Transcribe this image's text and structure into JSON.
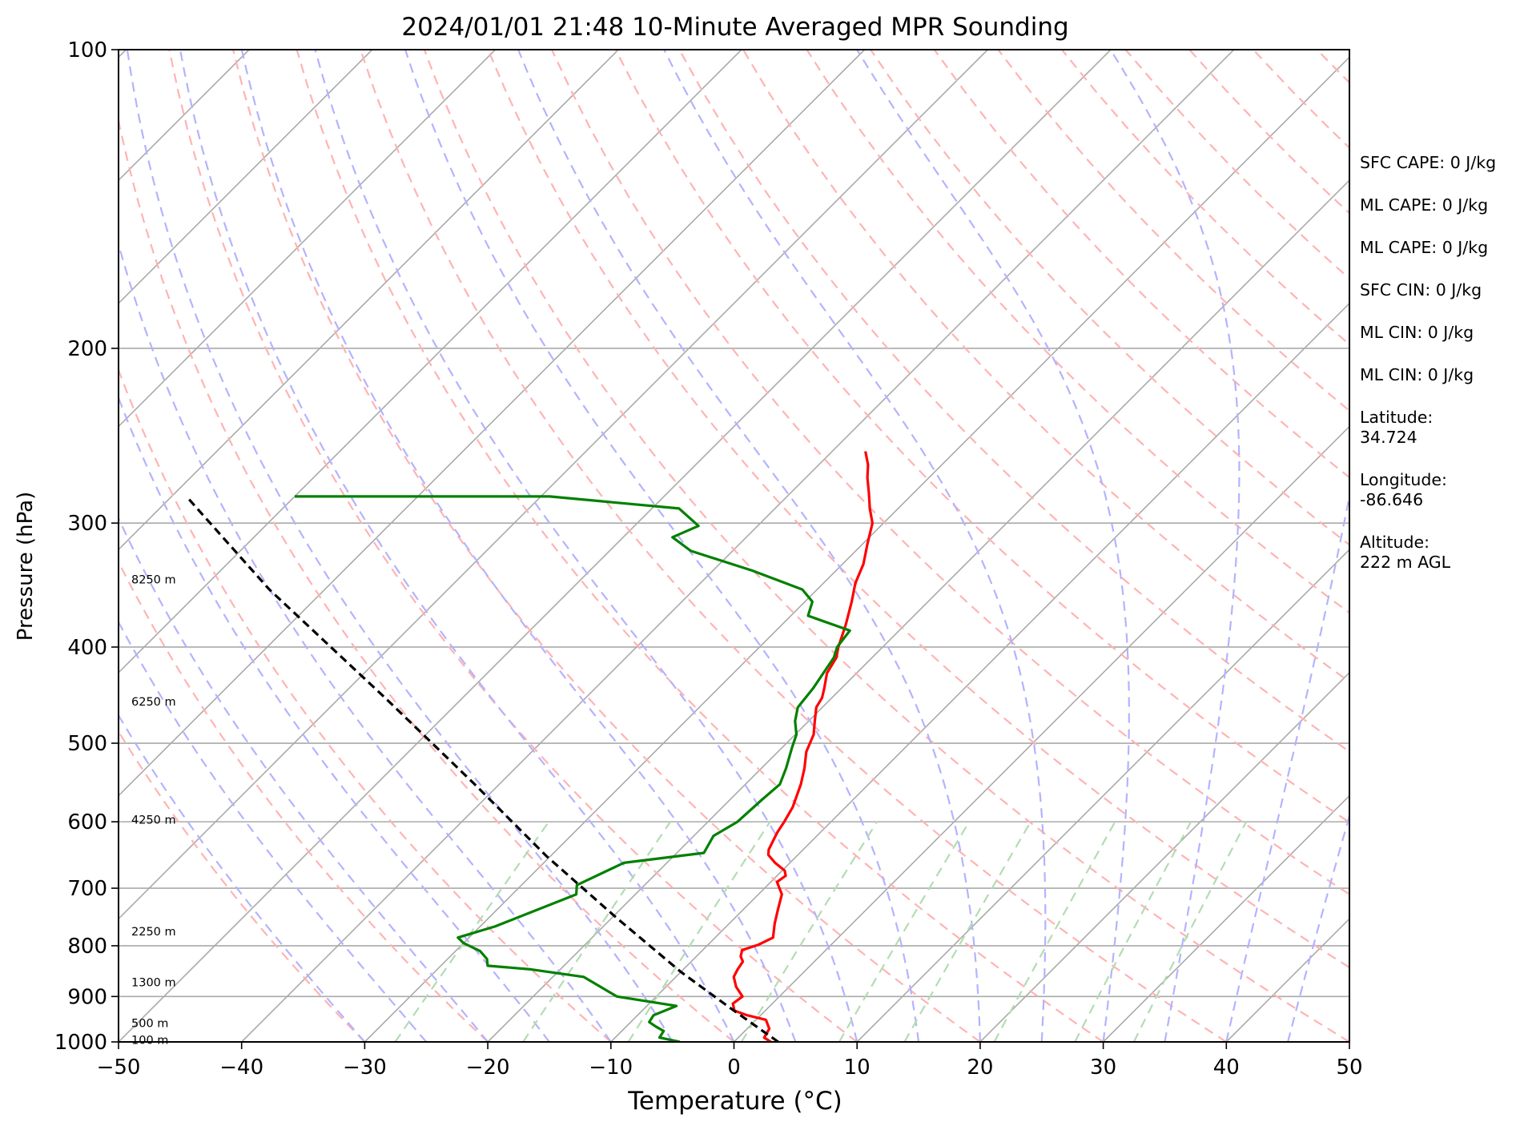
{
  "chart_data": {
    "type": "line",
    "title": "2024/01/01 21:48 10-Minute Averaged MPR Sounding",
    "xlabel": "Temperature (°C)",
    "ylabel": "Pressure (hPa)",
    "xlim": [
      -50,
      50
    ],
    "ylim": [
      1000,
      100
    ],
    "y_scale": "log",
    "skew": "skew-T",
    "grid": true,
    "x_ticks": [
      "−50",
      "−40",
      "−30",
      "−20",
      "−10",
      "0",
      "10",
      "20",
      "30",
      "40",
      "50"
    ],
    "x_tick_values": [
      -50,
      -40,
      -30,
      -20,
      -10,
      0,
      10,
      20,
      30,
      40,
      50
    ],
    "y_ticks": [
      "1000",
      "900",
      "800",
      "700",
      "600",
      "500",
      "400",
      "300",
      "200",
      "100"
    ],
    "y_tick_values": [
      1000,
      900,
      800,
      700,
      600,
      500,
      400,
      300,
      200,
      100
    ],
    "colors": {
      "temperature": "#ff0000",
      "dewpoint": "#008000",
      "parcel": "#000000",
      "isotherm": "#aaaaaa",
      "dry_adiabat": "#ffb3b3",
      "moist_adiabat": "#b3b3ff",
      "mixing_ratio": "#b3dcb3"
    },
    "series": [
      {
        "key": "temperature",
        "color": "#ff0000",
        "points": [
          [
            1000,
            3.0
          ],
          [
            990,
            2.1
          ],
          [
            970,
            1.8
          ],
          [
            950,
            0.8
          ],
          [
            940,
            -1.1
          ],
          [
            930,
            -2.5
          ],
          [
            915,
            -3.2
          ],
          [
            900,
            -3.0
          ],
          [
            880,
            -4.3
          ],
          [
            860,
            -5.3
          ],
          [
            845,
            -5.6
          ],
          [
            830,
            -5.8
          ],
          [
            820,
            -6.4
          ],
          [
            808,
            -6.8
          ],
          [
            798,
            -5.9
          ],
          [
            785,
            -5.3
          ],
          [
            760,
            -6.3
          ],
          [
            735,
            -7.2
          ],
          [
            710,
            -8.1
          ],
          [
            690,
            -9.5
          ],
          [
            680,
            -9.3
          ],
          [
            672,
            -9.8
          ],
          [
            660,
            -11.2
          ],
          [
            648,
            -12.4
          ],
          [
            640,
            -12.8
          ],
          [
            615,
            -13.5
          ],
          [
            600,
            -13.8
          ],
          [
            580,
            -14.3
          ],
          [
            550,
            -15.5
          ],
          [
            530,
            -16.5
          ],
          [
            510,
            -17.7
          ],
          [
            490,
            -18.5
          ],
          [
            475,
            -19.5
          ],
          [
            460,
            -20.5
          ],
          [
            450,
            -20.8
          ],
          [
            440,
            -21.4
          ],
          [
            425,
            -22.4
          ],
          [
            410,
            -22.9
          ],
          [
            400,
            -23.6
          ],
          [
            380,
            -24.8
          ],
          [
            360,
            -26.2
          ],
          [
            345,
            -27.4
          ],
          [
            330,
            -28.3
          ],
          [
            315,
            -29.6
          ],
          [
            300,
            -30.9
          ],
          [
            290,
            -32.3
          ],
          [
            280,
            -33.6
          ],
          [
            270,
            -35.0
          ],
          [
            262,
            -36.0
          ],
          [
            254,
            -37.3
          ]
        ]
      },
      {
        "key": "dewpoint",
        "color": "#008000",
        "points": [
          [
            1000,
            -4.4
          ],
          [
            990,
            -6.4
          ],
          [
            975,
            -6.6
          ],
          [
            965,
            -7.6
          ],
          [
            955,
            -8.5
          ],
          [
            940,
            -8.7
          ],
          [
            920,
            -7.6
          ],
          [
            900,
            -13.2
          ],
          [
            860,
            -17.5
          ],
          [
            845,
            -22.4
          ],
          [
            838,
            -26.2
          ],
          [
            825,
            -26.8
          ],
          [
            810,
            -28.0
          ],
          [
            795,
            -30.0
          ],
          [
            785,
            -30.9
          ],
          [
            765,
            -28.8
          ],
          [
            710,
            -24.8
          ],
          [
            695,
            -25.5
          ],
          [
            660,
            -23.5
          ],
          [
            645,
            -17.8
          ],
          [
            620,
            -18.4
          ],
          [
            600,
            -17.6
          ],
          [
            570,
            -17.4
          ],
          [
            550,
            -17.2
          ],
          [
            530,
            -18.0
          ],
          [
            505,
            -19.2
          ],
          [
            490,
            -19.9
          ],
          [
            475,
            -21.1
          ],
          [
            460,
            -22.0
          ],
          [
            440,
            -22.3
          ],
          [
            425,
            -22.7
          ],
          [
            410,
            -23.1
          ],
          [
            400,
            -23.7
          ],
          [
            385,
            -24.0
          ],
          [
            372,
            -28.6
          ],
          [
            360,
            -29.4
          ],
          [
            350,
            -31.2
          ],
          [
            335,
            -36.8
          ],
          [
            320,
            -43.4
          ],
          [
            310,
            -46.0
          ],
          [
            302,
            -44.8
          ],
          [
            290,
            -47.8
          ],
          [
            282,
            -59.3
          ],
          [
            282,
            -69.5
          ],
          [
            282,
            -80.0
          ]
        ]
      },
      {
        "key": "parcel",
        "color": "#000000",
        "dashed": true,
        "points": [
          [
            1000,
            3.6
          ],
          [
            925,
            -3.0
          ],
          [
            850,
            -10.0
          ],
          [
            750,
            -19.6
          ],
          [
            650,
            -30.3
          ],
          [
            550,
            -42.0
          ],
          [
            450,
            -56.3
          ],
          [
            350,
            -74.5
          ],
          [
            282,
            -88.8
          ]
        ]
      }
    ],
    "height_labels": [
      {
        "label": "8250 m",
        "p": 342
      },
      {
        "label": "6250 m",
        "p": 454
      },
      {
        "label": "4250 m",
        "p": 597
      },
      {
        "label": "2250 m",
        "p": 774
      },
      {
        "label": "1300 m",
        "p": 871
      },
      {
        "label": "500 m",
        "p": 957
      },
      {
        "label": "100 m",
        "p": 995
      }
    ],
    "info_box": [
      "SFC CAPE: 0 J/kg",
      "ML CAPE: 0 J/kg",
      "ML CAPE: 0 J/kg",
      "SFC CIN: 0 J/kg",
      "ML CIN: 0 J/kg",
      "ML CIN: 0 J/kg",
      "Latitude:\n34.724",
      "Longitude:\n-86.646",
      "Altitude:\n222 m AGL"
    ]
  }
}
